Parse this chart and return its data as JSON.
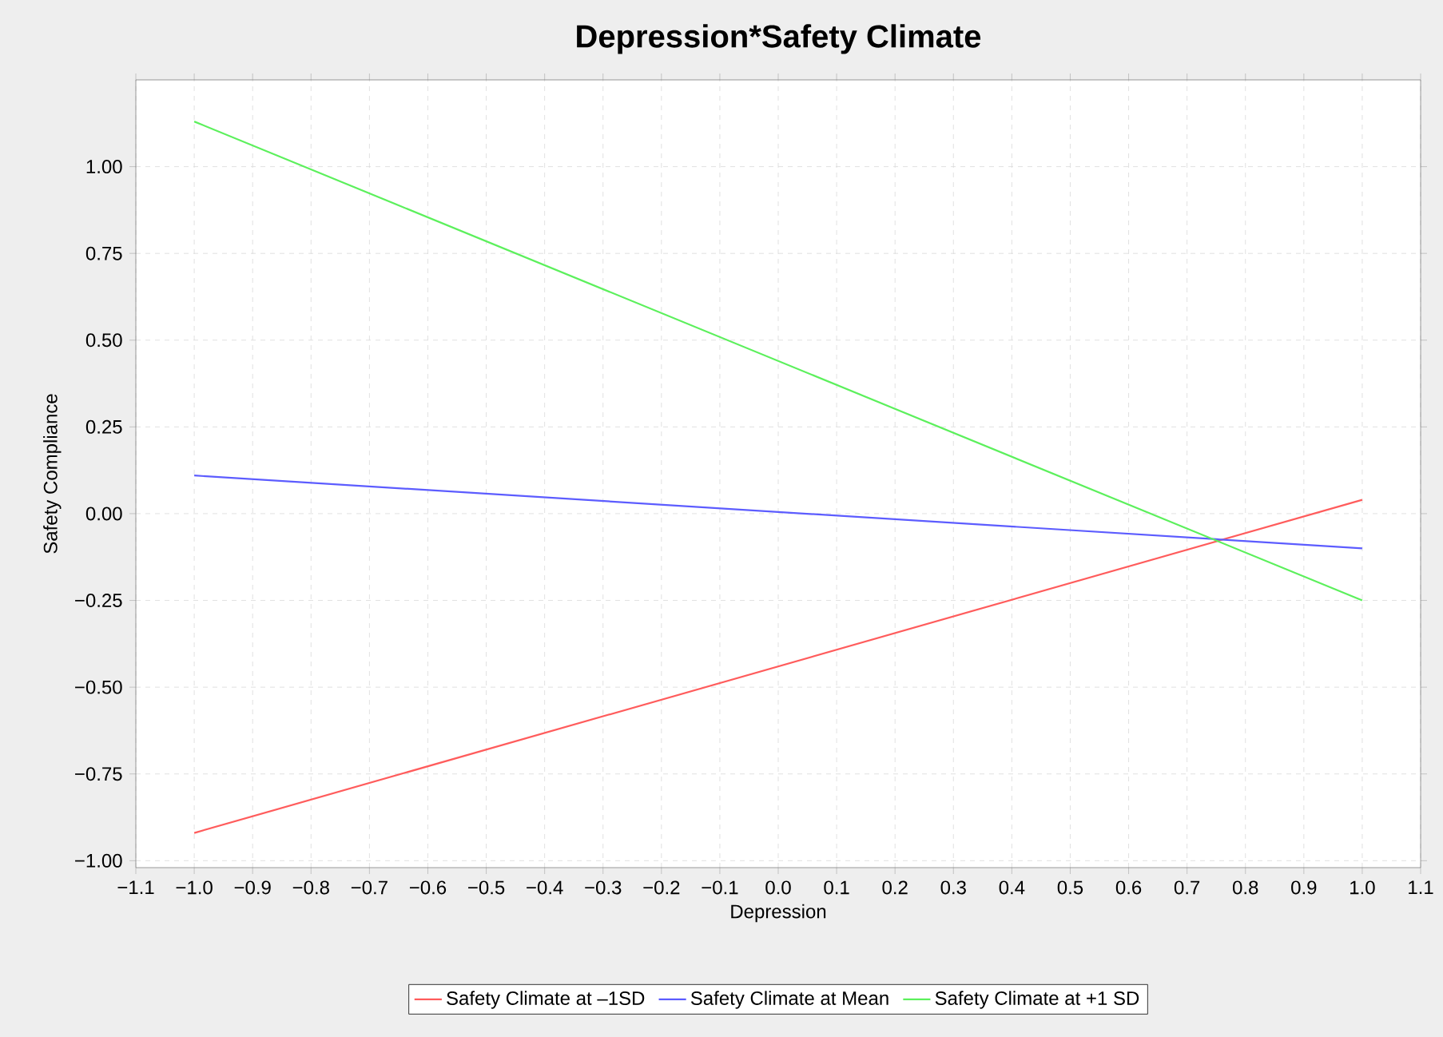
{
  "chart_data": {
    "type": "line",
    "title": "Depression*Safety Climate",
    "xlabel": "Depression",
    "ylabel": "Safety Compliance",
    "x": [
      -1.0,
      1.0
    ],
    "series": [
      {
        "name": "Safety Climate at –1SD",
        "color": "#ff5c5c",
        "values": [
          -0.92,
          0.04
        ]
      },
      {
        "name": "Safety Climate at Mean",
        "color": "#5c5cff",
        "values": [
          0.11,
          -0.1
        ]
      },
      {
        "name": "Safety Climate at +1 SD",
        "color": "#5cf05c",
        "values": [
          1.13,
          -0.25
        ]
      }
    ],
    "xlim": [
      -1.1,
      1.1
    ],
    "xticks": [
      {
        "value": -1.1,
        "label": "−1.1"
      },
      {
        "value": -1.0,
        "label": "−1.0"
      },
      {
        "value": -0.9,
        "label": "−0.9"
      },
      {
        "value": -0.8,
        "label": "−0.8"
      },
      {
        "value": -0.7,
        "label": "−0.7"
      },
      {
        "value": -0.6,
        "label": "−0.6"
      },
      {
        "value": -0.5,
        "label": "−0.5"
      },
      {
        "value": -0.4,
        "label": "−0.4"
      },
      {
        "value": -0.3,
        "label": "−0.3"
      },
      {
        "value": -0.2,
        "label": "−0.2"
      },
      {
        "value": -0.1,
        "label": "−0.1"
      },
      {
        "value": 0,
        "label": "0.0"
      },
      {
        "value": 0.1,
        "label": "0.1"
      },
      {
        "value": 0.2,
        "label": "0.2"
      },
      {
        "value": 0.3,
        "label": "0.3"
      },
      {
        "value": 0.4,
        "label": "0.4"
      },
      {
        "value": 0.5,
        "label": "0.5"
      },
      {
        "value": 0.6,
        "label": "0.6"
      },
      {
        "value": 0.7,
        "label": "0.7"
      },
      {
        "value": 0.8,
        "label": "0.8"
      },
      {
        "value": 0.9,
        "label": "0.9"
      },
      {
        "value": 1.0,
        "label": "1.0"
      },
      {
        "value": 1.1,
        "label": "1.1"
      }
    ],
    "ylim": [
      -1.02,
      1.25
    ],
    "yticks": [
      {
        "value": -1.0,
        "label": "−1.00"
      },
      {
        "value": -0.75,
        "label": "−0.75"
      },
      {
        "value": -0.5,
        "label": "−0.50"
      },
      {
        "value": -0.25,
        "label": "−0.25"
      },
      {
        "value": 0,
        "label": "0.00"
      },
      {
        "value": 0.25,
        "label": "0.25"
      },
      {
        "value": 0.5,
        "label": "0.50"
      },
      {
        "value": 0.75,
        "label": "0.75"
      },
      {
        "value": 1.0,
        "label": "1.00"
      }
    ],
    "grid": true,
    "legend": "bottom",
    "marker": "none",
    "line_style": "solid"
  }
}
